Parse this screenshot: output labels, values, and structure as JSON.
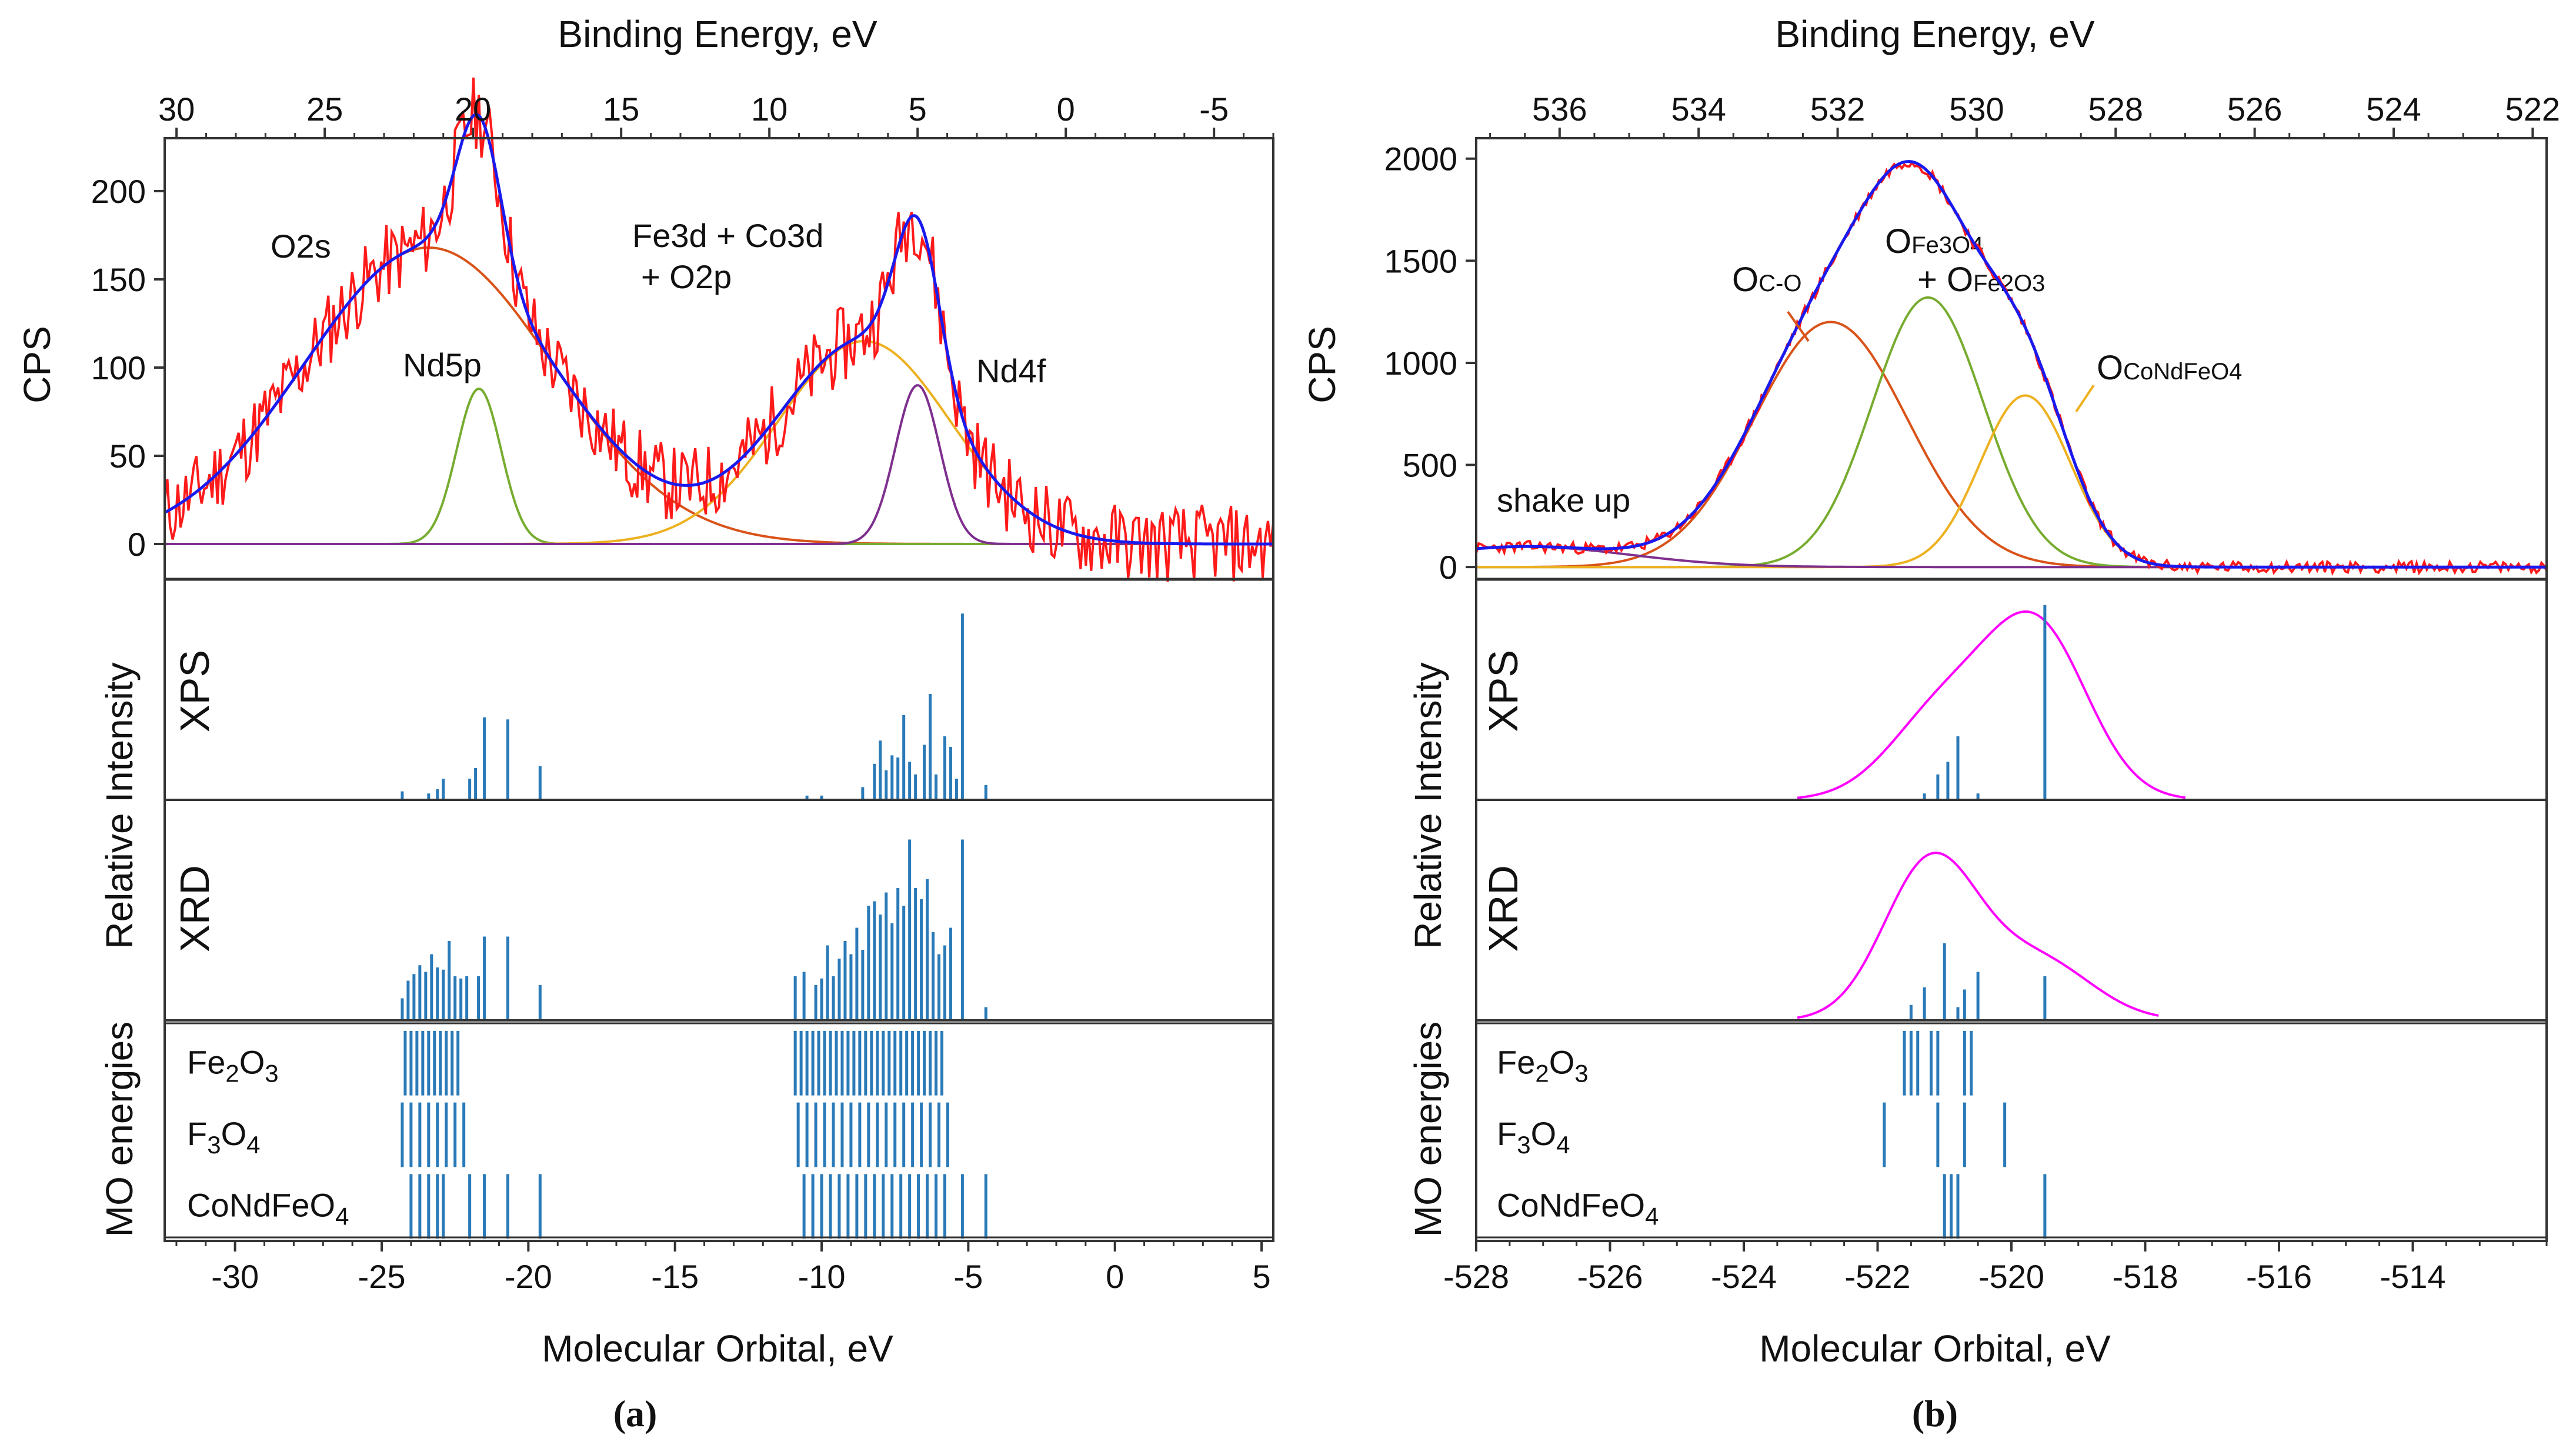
{
  "colors": {
    "raw": "#ff1a1a",
    "fit": "#1a1aee",
    "o2s": "#d95319",
    "nd5p": "#77ac30",
    "valence": "#edb120",
    "nd4f": "#7e2f8e",
    "occo": "#d95319",
    "ofe": "#77ac30",
    "ocond": "#edb120",
    "bg": "#7e2f8e",
    "stick": "#2a7ab8",
    "dos": "#ff00ff",
    "axis": "#333333"
  },
  "chart_data": [
    {
      "panel": "a",
      "type": "line",
      "top_axis": {
        "label": "Binding Energy, eV",
        "range": [
          30.4,
          -7.0
        ],
        "ticks": [
          "30",
          "25",
          "20",
          "15",
          "10",
          "5",
          "0",
          "-5"
        ]
      },
      "bottom_axis": {
        "label": "Molecular Orbital, eV",
        "range": [
          -32.4,
          5.4
        ],
        "ticks": [
          "-30",
          "-25",
          "-20",
          "-15",
          "-10",
          "-5",
          "0",
          "5"
        ]
      },
      "xps_ylabel": "CPS",
      "xps_ylim": [
        -20,
        230
      ],
      "xps_yticks": [
        "0",
        "50",
        "100",
        "150",
        "200"
      ],
      "components": [
        {
          "name": "O2s",
          "center": 21.5,
          "amp": 168,
          "sigma": 4.2
        },
        {
          "name": "Nd5p",
          "center": 19.8,
          "amp": 88,
          "sigma": 0.75
        },
        {
          "name": "Fe3d + Co3d + O2p",
          "center": 6.8,
          "amp": 115,
          "sigma": 2.9
        },
        {
          "name": "Nd4f",
          "center": 5.0,
          "amp": 90,
          "sigma": 0.75
        }
      ],
      "noise_amp": 16,
      "annotations": [
        "O2s",
        "Nd5p",
        "Fe3d + Co3d",
        "+ O2p",
        "Nd4f"
      ],
      "xps_sticks": [
        {
          "x": -24.3,
          "h": 0.04
        },
        {
          "x": -23.4,
          "h": 0.03
        },
        {
          "x": -23.1,
          "h": 0.05
        },
        {
          "x": -22.9,
          "h": 0.1
        },
        {
          "x": -22.0,
          "h": 0.1
        },
        {
          "x": -21.8,
          "h": 0.15
        },
        {
          "x": -21.5,
          "h": 0.39
        },
        {
          "x": -20.7,
          "h": 0.38
        },
        {
          "x": -19.6,
          "h": 0.16
        },
        {
          "x": -10.5,
          "h": 0.02
        },
        {
          "x": -10.0,
          "h": 0.02
        },
        {
          "x": -8.6,
          "h": 0.06
        },
        {
          "x": -8.2,
          "h": 0.17
        },
        {
          "x": -8.0,
          "h": 0.28
        },
        {
          "x": -7.8,
          "h": 0.14
        },
        {
          "x": -7.6,
          "h": 0.21
        },
        {
          "x": -7.4,
          "h": 0.2
        },
        {
          "x": -7.2,
          "h": 0.4
        },
        {
          "x": -7.0,
          "h": 0.18
        },
        {
          "x": -6.8,
          "h": 0.12
        },
        {
          "x": -6.5,
          "h": 0.26
        },
        {
          "x": -6.3,
          "h": 0.5
        },
        {
          "x": -6.1,
          "h": 0.12
        },
        {
          "x": -5.8,
          "h": 0.3
        },
        {
          "x": -5.6,
          "h": 0.25
        },
        {
          "x": -5.4,
          "h": 0.1
        },
        {
          "x": -5.2,
          "h": 0.88
        },
        {
          "x": -4.4,
          "h": 0.07
        }
      ],
      "xrd_sticks": [
        {
          "x": -24.3,
          "h": 0.1
        },
        {
          "x": -24.1,
          "h": 0.18
        },
        {
          "x": -23.9,
          "h": 0.21
        },
        {
          "x": -23.7,
          "h": 0.25
        },
        {
          "x": -23.5,
          "h": 0.22
        },
        {
          "x": -23.3,
          "h": 0.3
        },
        {
          "x": -23.1,
          "h": 0.24
        },
        {
          "x": -22.9,
          "h": 0.23
        },
        {
          "x": -22.7,
          "h": 0.36
        },
        {
          "x": -22.5,
          "h": 0.2
        },
        {
          "x": -22.3,
          "h": 0.19
        },
        {
          "x": -22.1,
          "h": 0.2
        },
        {
          "x": -21.7,
          "h": 0.2
        },
        {
          "x": -21.5,
          "h": 0.38
        },
        {
          "x": -20.7,
          "h": 0.38
        },
        {
          "x": -19.6,
          "h": 0.16
        },
        {
          "x": -10.9,
          "h": 0.2
        },
        {
          "x": -10.6,
          "h": 0.22
        },
        {
          "x": -10.2,
          "h": 0.16
        },
        {
          "x": -10.0,
          "h": 0.19
        },
        {
          "x": -9.8,
          "h": 0.34
        },
        {
          "x": -9.6,
          "h": 0.2
        },
        {
          "x": -9.4,
          "h": 0.28
        },
        {
          "x": -9.2,
          "h": 0.36
        },
        {
          "x": -9.0,
          "h": 0.3
        },
        {
          "x": -8.8,
          "h": 0.42
        },
        {
          "x": -8.6,
          "h": 0.32
        },
        {
          "x": -8.4,
          "h": 0.52
        },
        {
          "x": -8.2,
          "h": 0.54
        },
        {
          "x": -8.0,
          "h": 0.48
        },
        {
          "x": -7.8,
          "h": 0.58
        },
        {
          "x": -7.6,
          "h": 0.44
        },
        {
          "x": -7.4,
          "h": 0.6
        },
        {
          "x": -7.2,
          "h": 0.52
        },
        {
          "x": -7.0,
          "h": 0.82
        },
        {
          "x": -6.8,
          "h": 0.6
        },
        {
          "x": -6.6,
          "h": 0.55
        },
        {
          "x": -6.4,
          "h": 0.64
        },
        {
          "x": -6.2,
          "h": 0.4
        },
        {
          "x": -6.0,
          "h": 0.3
        },
        {
          "x": -5.8,
          "h": 0.34
        },
        {
          "x": -5.6,
          "h": 0.42
        },
        {
          "x": -5.2,
          "h": 0.82
        },
        {
          "x": -4.4,
          "h": 0.06
        }
      ],
      "mo_rows": [
        {
          "label_main": "Fe",
          "label_sub1": "2",
          "label_mid": "O",
          "label_sub2": "3",
          "sticks": [
            -24.2,
            -24.0,
            -23.8,
            -23.6,
            -23.4,
            -23.2,
            -23.0,
            -22.8,
            -22.6,
            -22.4,
            -10.9,
            -10.7,
            -10.5,
            -10.3,
            -10.1,
            -9.9,
            -9.7,
            -9.5,
            -9.3,
            -9.1,
            -8.9,
            -8.7,
            -8.5,
            -8.3,
            -8.1,
            -7.9,
            -7.7,
            -7.5,
            -7.3,
            -7.1,
            -6.9,
            -6.7,
            -6.5,
            -6.3,
            -6.1,
            -5.9
          ]
        },
        {
          "label_main": "F",
          "label_sub1": "3",
          "label_mid": "O",
          "label_sub2": "4",
          "sticks": [
            -24.3,
            -24.0,
            -23.7,
            -23.4,
            -23.1,
            -22.8,
            -22.5,
            -22.2,
            -10.8,
            -10.5,
            -10.2,
            -9.9,
            -9.6,
            -9.3,
            -9.0,
            -8.7,
            -8.4,
            -8.1,
            -7.8,
            -7.5,
            -7.2,
            -6.9,
            -6.6,
            -6.3,
            -6.0,
            -5.7
          ]
        },
        {
          "label_main": "CoNdFeO",
          "label_sub1": "4",
          "label_mid": "",
          "label_sub2": "",
          "sticks": [
            -24.0,
            -23.7,
            -23.4,
            -23.1,
            -22.9,
            -22.0,
            -21.5,
            -20.7,
            -19.6,
            -10.6,
            -10.3,
            -10.0,
            -9.7,
            -9.4,
            -9.1,
            -8.8,
            -8.5,
            -8.2,
            -7.9,
            -7.6,
            -7.3,
            -7.0,
            -6.7,
            -6.4,
            -6.1,
            -5.8,
            -5.2,
            -4.4
          ]
        }
      ],
      "caption": "(a)"
    },
    {
      "panel": "b",
      "type": "line",
      "top_axis": {
        "label": "Binding Energy, eV",
        "range": [
          537.2,
          521.8
        ],
        "ticks": [
          "536",
          "534",
          "532",
          "530",
          "528",
          "526",
          "524",
          "522"
        ]
      },
      "bottom_axis": {
        "label": "Molecular Orbital, eV",
        "range": [
          -528.0,
          -512.0
        ],
        "ticks": [
          "-528",
          "-526",
          "-524",
          "-522",
          "-520",
          "-518",
          "-516",
          "-514"
        ]
      },
      "xps_ylabel": "CPS",
      "xps_ylim": [
        -60,
        2100
      ],
      "xps_yticks": [
        "0",
        "500",
        "1000",
        "1500",
        "2000"
      ],
      "components": [
        {
          "name": "Oc-o",
          "center": 532.1,
          "amp": 1200,
          "sigma": 1.1
        },
        {
          "name": "OFe3O4 + OFe2O3",
          "center": 530.7,
          "amp": 1320,
          "sigma": 0.8
        },
        {
          "name": "OCoNdFeO4",
          "center": 529.3,
          "amp": 840,
          "sigma": 0.65
        },
        {
          "name": "shake up",
          "center": 536.5,
          "amp": 100,
          "sigma": 1.5
        }
      ],
      "noise_amp": 28,
      "annotations": [
        "O",
        "C-O",
        "O",
        "Fe3O4",
        "+ O",
        "Fe2O3",
        "O",
        "CoNdFeO4",
        "shake up"
      ],
      "xps_dos": {
        "range": [
          -523.2,
          -517.4
        ],
        "peaks": [
          {
            "center": -519.6,
            "amp": 0.78,
            "sigma": 0.75
          },
          {
            "center": -521.0,
            "amp": 0.42,
            "sigma": 0.8
          }
        ]
      },
      "xps_sticks": [
        {
          "x": -521.3,
          "h": 0.03
        },
        {
          "x": -521.1,
          "h": 0.12
        },
        {
          "x": -520.95,
          "h": 0.18
        },
        {
          "x": -520.8,
          "h": 0.3
        },
        {
          "x": -520.5,
          "h": 0.03
        },
        {
          "x": -519.5,
          "h": 0.92
        }
      ],
      "xrd_dos": {
        "range": [
          -523.2,
          -517.8
        ],
        "peaks": [
          {
            "center": -521.2,
            "amp": 0.75,
            "sigma": 0.7
          },
          {
            "center": -519.6,
            "amp": 0.28,
            "sigma": 0.8
          }
        ]
      },
      "xrd_sticks": [
        {
          "x": -521.5,
          "h": 0.07
        },
        {
          "x": -521.3,
          "h": 0.15
        },
        {
          "x": -521.0,
          "h": 0.35
        },
        {
          "x": -520.8,
          "h": 0.06
        },
        {
          "x": -520.7,
          "h": 0.14
        },
        {
          "x": -520.5,
          "h": 0.22
        },
        {
          "x": -519.5,
          "h": 0.2
        }
      ],
      "mo_rows": [
        {
          "label_main": "Fe",
          "label_sub1": "2",
          "label_mid": "O",
          "label_sub2": "3",
          "sticks": [
            -521.6,
            -521.5,
            -521.4,
            -521.2,
            -521.1,
            -520.7,
            -520.6
          ]
        },
        {
          "label_main": "F",
          "label_sub1": "3",
          "label_mid": "O",
          "label_sub2": "4",
          "sticks": [
            -521.9,
            -521.1,
            -520.7,
            -520.1
          ]
        },
        {
          "label_main": "CoNdFeO",
          "label_sub1": "4",
          "label_mid": "",
          "label_sub2": "",
          "sticks": [
            -521.0,
            -520.9,
            -520.8,
            -519.5
          ]
        }
      ],
      "caption": "(b)"
    }
  ],
  "side_labels": {
    "relative_intensity": "Relative Intensity",
    "xps": "XPS",
    "xrd": "XRD",
    "mo": "MO energies"
  }
}
